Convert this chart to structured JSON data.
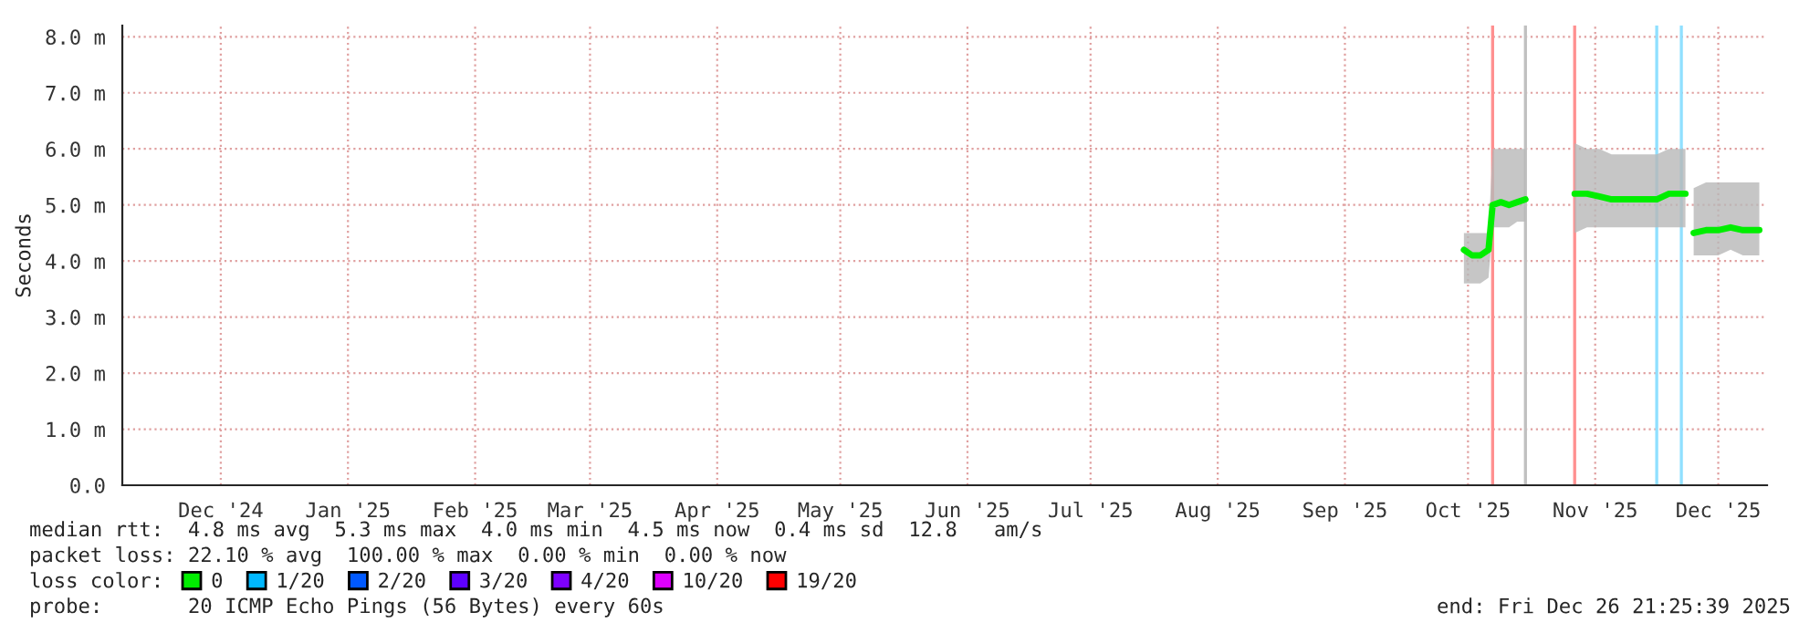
{
  "chart_data": {
    "type": "line",
    "ylabel": "Seconds",
    "x": [
      "2025-10-14",
      "2025-10-16",
      "2025-10-18",
      "2025-10-20",
      "2025-10-21",
      "2025-10-23",
      "2025-10-25",
      "2025-10-27",
      "2025-10-29",
      "2025-11-01",
      "2025-11-10",
      "2025-11-13",
      "2025-11-16",
      "2025-11-19",
      "2025-11-22",
      "2025-11-25",
      "2025-11-28",
      "2025-11-30",
      "2025-12-03",
      "2025-12-07",
      "2025-12-08",
      "2025-12-09",
      "2025-12-12",
      "2025-12-15",
      "2025-12-18",
      "2025-12-21",
      "2025-12-25"
    ],
    "series": [
      {
        "name": "0",
        "color": "#00ee00",
        "values": [
          4.2,
          4.1,
          4.1,
          4.2,
          5.0,
          5.05,
          5.0,
          5.05,
          5.1,
          null,
          5.2,
          5.2,
          5.15,
          5.1,
          5.1,
          5.1,
          5.1,
          5.1,
          5.2,
          5.2,
          null,
          4.5,
          4.55,
          4.55,
          4.6,
          4.55,
          4.55
        ],
        "lower": [
          3.6,
          3.6,
          3.6,
          3.7,
          4.6,
          4.6,
          4.6,
          4.7,
          4.7,
          null,
          4.5,
          4.6,
          4.6,
          4.6,
          4.6,
          4.6,
          4.6,
          4.6,
          4.6,
          4.6,
          null,
          4.1,
          4.1,
          4.1,
          4.2,
          4.1,
          4.1
        ],
        "upper": [
          4.5,
          4.5,
          4.5,
          4.5,
          6.0,
          6.0,
          6.0,
          6.0,
          6.0,
          null,
          6.1,
          6.0,
          6.0,
          5.9,
          5.9,
          5.9,
          5.9,
          5.9,
          6.0,
          6.0,
          null,
          5.3,
          5.4,
          5.4,
          5.4,
          5.4,
          5.4
        ]
      },
      {
        "name": "1/20",
        "color": "#00b8ff",
        "values": [
          null,
          null,
          null,
          null,
          null,
          null,
          null,
          null,
          null,
          null,
          null,
          null,
          null,
          null,
          null,
          null,
          null,
          null,
          null,
          null,
          null,
          null,
          null,
          null,
          null,
          null,
          null
        ]
      },
      {
        "name": "2/20",
        "color": "#0059ff",
        "values": [
          null,
          null,
          null,
          null,
          null,
          null,
          null,
          null,
          null,
          null,
          null,
          null,
          null,
          null,
          null,
          null,
          null,
          null,
          null,
          null,
          null,
          null,
          null,
          null,
          null,
          null,
          null
        ]
      },
      {
        "name": "3/20",
        "color": "#5e00ff",
        "values": [
          null,
          null,
          null,
          null,
          null,
          null,
          null,
          null,
          null,
          null,
          null,
          null,
          null,
          null,
          null,
          null,
          null,
          null,
          null,
          null,
          null,
          null,
          null,
          null,
          null,
          null,
          null
        ]
      },
      {
        "name": "4/20",
        "color": "#7e00ff",
        "values": [
          null,
          null,
          null,
          null,
          null,
          null,
          null,
          null,
          null,
          null,
          null,
          null,
          null,
          null,
          null,
          null,
          null,
          null,
          null,
          null,
          null,
          null,
          null,
          null,
          null,
          null,
          null
        ]
      },
      {
        "name": "10/20",
        "color": "#dd00ff",
        "values": [
          null,
          null,
          null,
          null,
          null,
          null,
          null,
          null,
          null,
          null,
          null,
          null,
          null,
          null,
          null,
          null,
          null,
          null,
          null,
          null,
          null,
          null,
          null,
          null,
          null,
          null,
          null
        ]
      },
      {
        "name": "19/20",
        "color": "#ff0000",
        "values": [
          null,
          null,
          null,
          null,
          null,
          null,
          null,
          null,
          null,
          null,
          null,
          null,
          null,
          null,
          null,
          null,
          null,
          null,
          null,
          null,
          null,
          null,
          null,
          null,
          null,
          null,
          null
        ]
      }
    ],
    "ref_lines": [
      {
        "axis": "x",
        "value": "2025-10-21",
        "color": "#ff9090"
      },
      {
        "axis": "x",
        "value": "2025-10-29",
        "color": "#c0c0c0"
      },
      {
        "axis": "x",
        "value": "2025-11-10",
        "color": "#ff9090"
      },
      {
        "axis": "x",
        "value": "2025-11-30",
        "color": "#90e0ff"
      },
      {
        "axis": "x",
        "value": "2025-12-06",
        "color": "#90e0ff"
      }
    ],
    "xlim": [
      "2024-11-21",
      "2025-12-26T21:25"
    ],
    "xticks": [
      {
        "value": "2024-12-15",
        "label": "Dec '24"
      },
      {
        "value": "2025-01-15",
        "label": "Jan '25"
      },
      {
        "value": "2025-02-15",
        "label": "Feb '25"
      },
      {
        "value": "2025-03-15",
        "label": "Mar '25"
      },
      {
        "value": "2025-04-15",
        "label": "Apr '25"
      },
      {
        "value": "2025-05-15",
        "label": "May '25"
      },
      {
        "value": "2025-06-15",
        "label": "Jun '25"
      },
      {
        "value": "2025-07-15",
        "label": "Jul '25"
      },
      {
        "value": "2025-08-15",
        "label": "Aug '25"
      },
      {
        "value": "2025-09-15",
        "label": "Sep '25"
      },
      {
        "value": "2025-10-15",
        "label": "Oct '25"
      },
      {
        "value": "2025-11-15",
        "label": "Nov '25"
      },
      {
        "value": "2025-12-15",
        "label": "Dec '25"
      }
    ],
    "ylim": [
      0,
      8.2
    ],
    "yticks": [
      {
        "value": 0,
        "label": "0.0"
      },
      {
        "value": 1,
        "label": "1.0 m"
      },
      {
        "value": 2,
        "label": "2.0 m"
      },
      {
        "value": 3,
        "label": "3.0 m"
      },
      {
        "value": 4,
        "label": "4.0 m"
      },
      {
        "value": 5,
        "label": "5.0 m"
      },
      {
        "value": 6,
        "label": "6.0 m"
      },
      {
        "value": 7,
        "label": "7.0 m"
      },
      {
        "value": 8,
        "label": "8.0 m"
      }
    ],
    "grid": true,
    "legend": "bottom left",
    "legend_title": "loss color:",
    "line_style": "solid",
    "marker": "none",
    "annotations": [
      "median rtt:  4.8 ms avg  5.3 ms max  4.0 ms min  4.5 ms now  0.4 ms sd  12.8   am/s",
      "packet loss: 22.10 % avg  100.00 % max  0.00 % min  0.00 % now",
      "probe:       20 ICMP Echo Pings (56 Bytes) every 60s",
      "end: Fri Dec 26 21:25:39 2025"
    ]
  }
}
